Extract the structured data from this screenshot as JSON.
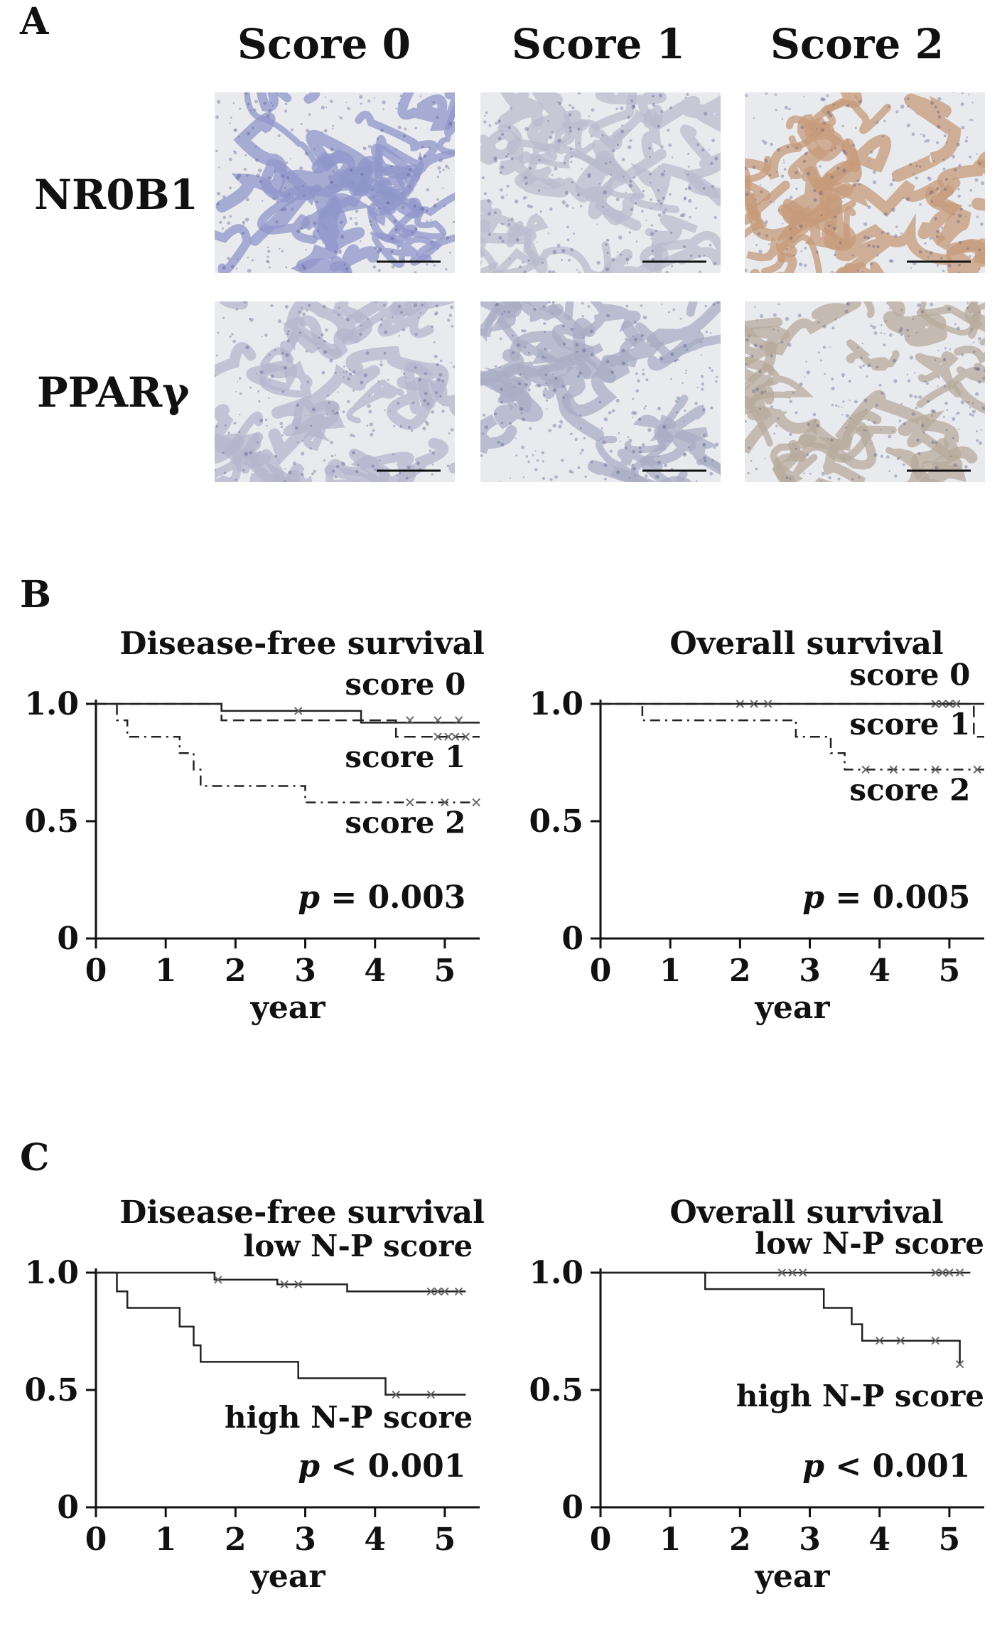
{
  "panelA": {
    "letter": "A",
    "columns": [
      "Score 0",
      "Score 1",
      "Score 2"
    ],
    "rows": [
      "NR0B1",
      "PPARγ"
    ],
    "tiles": [
      {
        "row": 0,
        "col": 0,
        "tone": "#8f95c9"
      },
      {
        "row": 0,
        "col": 1,
        "tone": "#b9bccd"
      },
      {
        "row": 0,
        "col": 2,
        "tone": "#c59a7a"
      },
      {
        "row": 1,
        "col": 0,
        "tone": "#b4b6cc"
      },
      {
        "row": 1,
        "col": 1,
        "tone": "#a8adc4"
      },
      {
        "row": 1,
        "col": 2,
        "tone": "#b7a99c"
      }
    ]
  },
  "panelB": {
    "letter": "B"
  },
  "panelC": {
    "letter": "C"
  },
  "chart_data": [
    {
      "id": "B-left",
      "type": "line",
      "title": "Disease-free survival",
      "xlabel": "year",
      "xlim": [
        0,
        5.5
      ],
      "ylim": [
        0,
        1.0
      ],
      "xticks": [
        "0",
        "1",
        "2",
        "3",
        "4",
        "5"
      ],
      "yticks": [
        "0",
        "0.5",
        "1.0"
      ],
      "pvalue": {
        "symbol": "p",
        "op": "=",
        "value": "0.003"
      },
      "series": [
        {
          "name": "score 0",
          "dash": "solid",
          "steps": [
            [
              0,
              1.0
            ],
            [
              1.8,
              1.0
            ],
            [
              1.8,
              0.97
            ],
            [
              3.8,
              0.97
            ],
            [
              3.8,
              0.92
            ],
            [
              5.5,
              0.92
            ]
          ],
          "censors": [
            [
              2.9,
              0.97
            ]
          ]
        },
        {
          "name": "score 1",
          "dash": "dashed",
          "steps": [
            [
              0,
              1.0
            ],
            [
              1.8,
              1.0
            ],
            [
              1.8,
              0.93
            ],
            [
              4.3,
              0.93
            ],
            [
              4.3,
              0.86
            ],
            [
              5.5,
              0.86
            ]
          ],
          "censors": [
            [
              4.5,
              0.93
            ],
            [
              4.9,
              0.93
            ],
            [
              5.2,
              0.93
            ],
            [
              4.9,
              0.86
            ],
            [
              5.05,
              0.86
            ],
            [
              5.15,
              0.86
            ],
            [
              5.3,
              0.86
            ]
          ]
        },
        {
          "name": "score 2",
          "dash": "dashdot",
          "steps": [
            [
              0,
              1.0
            ],
            [
              0.3,
              1.0
            ],
            [
              0.3,
              0.93
            ],
            [
              0.45,
              0.93
            ],
            [
              0.45,
              0.86
            ],
            [
              1.2,
              0.86
            ],
            [
              1.2,
              0.79
            ],
            [
              1.4,
              0.79
            ],
            [
              1.4,
              0.72
            ],
            [
              1.5,
              0.72
            ],
            [
              1.5,
              0.65
            ],
            [
              3.0,
              0.65
            ],
            [
              3.0,
              0.58
            ],
            [
              5.5,
              0.58
            ]
          ],
          "censors": [
            [
              4.5,
              0.58
            ],
            [
              5.0,
              0.58
            ],
            [
              5.45,
              0.58
            ]
          ]
        }
      ],
      "labels": [
        {
          "text": "score 0",
          "x": 5.3,
          "y": 1.04
        },
        {
          "text": "score 1",
          "x": 5.3,
          "y": 0.73
        },
        {
          "text": "score 2",
          "x": 5.3,
          "y": 0.45
        }
      ]
    },
    {
      "id": "B-right",
      "type": "line",
      "title": "Overall survival",
      "xlabel": "year",
      "xlim": [
        0,
        5.5
      ],
      "ylim": [
        0,
        1.0
      ],
      "xticks": [
        "0",
        "1",
        "2",
        "3",
        "4",
        "5"
      ],
      "yticks": [
        "0",
        "0.5",
        "1.0"
      ],
      "pvalue": {
        "symbol": "p",
        "op": "=",
        "value": "0.005"
      },
      "series": [
        {
          "name": "score 0",
          "dash": "solid",
          "steps": [
            [
              0,
              1.0
            ],
            [
              5.5,
              1.0
            ]
          ],
          "censors": [
            [
              2.0,
              1.0
            ],
            [
              2.2,
              1.0
            ],
            [
              2.4,
              1.0
            ],
            [
              4.8,
              1.0
            ],
            [
              4.9,
              1.0
            ],
            [
              5.0,
              1.0
            ],
            [
              5.1,
              1.0
            ]
          ]
        },
        {
          "name": "score 1",
          "dash": "dashed",
          "steps": [
            [
              0,
              1.0
            ],
            [
              5.35,
              1.0
            ],
            [
              5.35,
              0.86
            ],
            [
              5.5,
              0.86
            ]
          ],
          "censors": []
        },
        {
          "name": "score 2",
          "dash": "dashdot",
          "steps": [
            [
              0,
              1.0
            ],
            [
              0.6,
              1.0
            ],
            [
              0.6,
              0.93
            ],
            [
              2.8,
              0.93
            ],
            [
              2.8,
              0.86
            ],
            [
              3.3,
              0.86
            ],
            [
              3.3,
              0.79
            ],
            [
              3.5,
              0.79
            ],
            [
              3.5,
              0.72
            ],
            [
              5.5,
              0.72
            ]
          ],
          "censors": [
            [
              3.8,
              0.72
            ],
            [
              4.2,
              0.72
            ],
            [
              4.8,
              0.72
            ],
            [
              5.4,
              0.72
            ]
          ]
        }
      ],
      "labels": [
        {
          "text": "score 0",
          "x": 5.3,
          "y": 1.08
        },
        {
          "text": "score 1",
          "x": 5.3,
          "y": 0.87
        },
        {
          "text": "score 2",
          "x": 5.3,
          "y": 0.59
        }
      ]
    },
    {
      "id": "C-left",
      "type": "line",
      "title": "Disease-free survival",
      "xlabel": "year",
      "xlim": [
        0,
        5.5
      ],
      "ylim": [
        0,
        1.0
      ],
      "xticks": [
        "0",
        "1",
        "2",
        "3",
        "4",
        "5"
      ],
      "yticks": [
        "0",
        "0.5",
        "1.0"
      ],
      "pvalue": {
        "symbol": "p",
        "op": "<",
        "value": "0.001"
      },
      "series": [
        {
          "name": "low N-P score",
          "dash": "solid",
          "steps": [
            [
              0,
              1.0
            ],
            [
              1.7,
              1.0
            ],
            [
              1.7,
              0.97
            ],
            [
              2.6,
              0.97
            ],
            [
              2.6,
              0.95
            ],
            [
              3.6,
              0.95
            ],
            [
              3.6,
              0.92
            ],
            [
              5.3,
              0.92
            ]
          ],
          "censors": [
            [
              1.75,
              0.97
            ],
            [
              2.7,
              0.95
            ],
            [
              2.9,
              0.95
            ],
            [
              4.8,
              0.92
            ],
            [
              4.9,
              0.92
            ],
            [
              5.0,
              0.92
            ],
            [
              5.2,
              0.92
            ]
          ]
        },
        {
          "name": "high N-P score",
          "dash": "solid",
          "steps": [
            [
              0,
              1.0
            ],
            [
              0.3,
              1.0
            ],
            [
              0.3,
              0.92
            ],
            [
              0.45,
              0.92
            ],
            [
              0.45,
              0.85
            ],
            [
              1.2,
              0.85
            ],
            [
              1.2,
              0.77
            ],
            [
              1.4,
              0.77
            ],
            [
              1.4,
              0.69
            ],
            [
              1.5,
              0.69
            ],
            [
              1.5,
              0.62
            ],
            [
              2.9,
              0.62
            ],
            [
              2.9,
              0.55
            ],
            [
              4.15,
              0.55
            ],
            [
              4.15,
              0.48
            ],
            [
              5.3,
              0.48
            ]
          ],
          "censors": [
            [
              4.3,
              0.48
            ],
            [
              4.8,
              0.48
            ]
          ]
        }
      ],
      "labels": [
        {
          "text": "low N-P score",
          "x": 5.4,
          "y": 1.07
        },
        {
          "text": "high N-P score",
          "x": 5.4,
          "y": 0.34
        }
      ]
    },
    {
      "id": "C-right",
      "type": "line",
      "title": "Overall survival",
      "xlabel": "year",
      "xlim": [
        0,
        5.5
      ],
      "ylim": [
        0,
        1.0
      ],
      "xticks": [
        "0",
        "1",
        "2",
        "3",
        "4",
        "5"
      ],
      "yticks": [
        "0",
        "0.5",
        "1.0"
      ],
      "pvalue": {
        "symbol": "p",
        "op": "<",
        "value": "0.001"
      },
      "series": [
        {
          "name": "low N-P score",
          "dash": "solid",
          "steps": [
            [
              0,
              1.0
            ],
            [
              5.3,
              1.0
            ]
          ],
          "censors": [
            [
              2.6,
              1.0
            ],
            [
              2.75,
              1.0
            ],
            [
              2.9,
              1.0
            ],
            [
              4.8,
              1.0
            ],
            [
              4.9,
              1.0
            ],
            [
              5.0,
              1.0
            ],
            [
              5.15,
              1.0
            ]
          ]
        },
        {
          "name": "high N-P score",
          "dash": "solid",
          "steps": [
            [
              0,
              1.0
            ],
            [
              1.5,
              1.0
            ],
            [
              1.5,
              0.93
            ],
            [
              3.2,
              0.93
            ],
            [
              3.2,
              0.85
            ],
            [
              3.6,
              0.85
            ],
            [
              3.6,
              0.78
            ],
            [
              3.75,
              0.78
            ],
            [
              3.75,
              0.71
            ],
            [
              5.15,
              0.71
            ],
            [
              5.15,
              0.61
            ]
          ],
          "censors": [
            [
              4.0,
              0.71
            ],
            [
              4.3,
              0.71
            ],
            [
              4.8,
              0.71
            ],
            [
              5.15,
              0.61
            ]
          ]
        }
      ],
      "labels": [
        {
          "text": "low N-P score",
          "x": 5.5,
          "y": 1.08
        },
        {
          "text": "high N-P score",
          "x": 5.5,
          "y": 0.43
        }
      ]
    }
  ]
}
